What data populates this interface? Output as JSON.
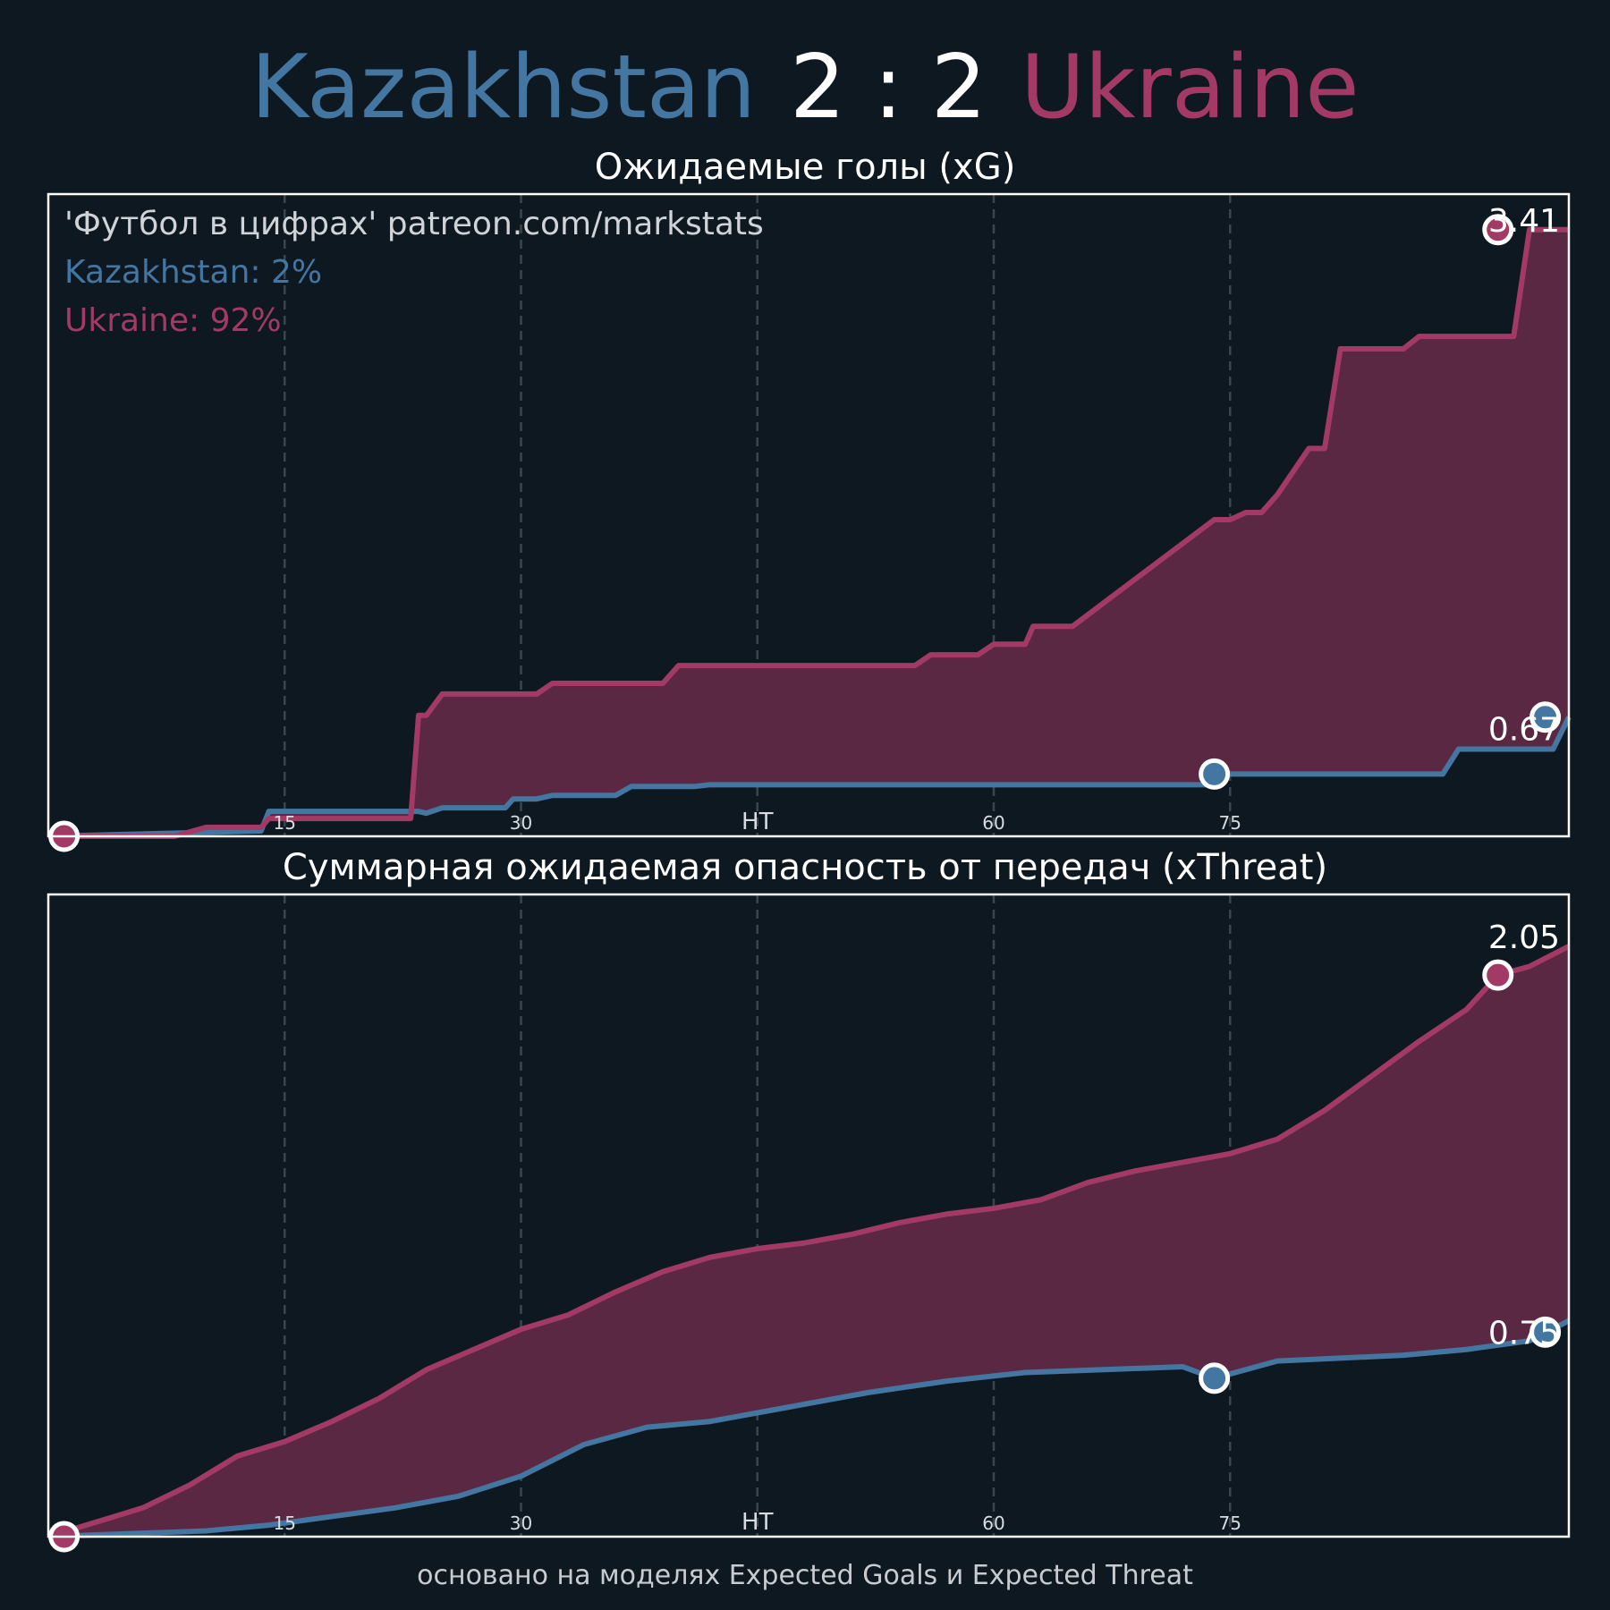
{
  "match": {
    "home_team": "Kazakhstan",
    "away_team": "Ukraine",
    "score": "2 : 2",
    "home_color": "#4476a2",
    "away_color": "#a33a65",
    "fill_color": "#5a2843",
    "background": "#0e1821"
  },
  "source_label": "'Футбол в цифрах' patreon.com/markstats",
  "win_probability": {
    "home_label": "Kazakhstan: 2%",
    "away_label": "Ukraine: 92%"
  },
  "footer": "основано на моделях Expected Goals и Expected Threat",
  "chart_data": [
    {
      "type": "line",
      "title": "Ожидаемые голы (xG)",
      "xlim": [
        0,
        96.5
      ],
      "ylim": [
        0,
        3.61
      ],
      "x_ticks": [
        {
          "value": 15,
          "label": "15"
        },
        {
          "value": 30,
          "label": "30"
        },
        {
          "value": 45,
          "label": "HT"
        },
        {
          "value": 60,
          "label": "60"
        },
        {
          "value": 75,
          "label": "75"
        }
      ],
      "final_labels": {
        "home": "0.67",
        "away": "3.41"
      },
      "goals": [
        {
          "team": "away",
          "minute": 1,
          "value": 0.0
        },
        {
          "team": "home",
          "minute": 74,
          "value": 0.35
        },
        {
          "team": "away",
          "minute": 92,
          "value": 3.41
        },
        {
          "team": "home",
          "minute": 95,
          "value": 0.67
        }
      ],
      "series": [
        {
          "name": "Kazakhstan",
          "team": "home",
          "x": [
            0,
            13.5,
            14,
            23.5,
            24,
            25,
            29,
            29.5,
            31,
            32,
            36,
            37,
            41,
            42,
            47,
            74,
            74.5,
            88.5,
            89.5,
            95.5,
            96.5
          ],
          "y": [
            0,
            0.03,
            0.14,
            0.14,
            0.13,
            0.16,
            0.16,
            0.21,
            0.21,
            0.23,
            0.23,
            0.28,
            0.28,
            0.29,
            0.29,
            0.29,
            0.35,
            0.35,
            0.49,
            0.49,
            0.67
          ]
        },
        {
          "name": "Ukraine",
          "team": "away",
          "x": [
            0,
            8,
            10,
            13.5,
            14,
            23,
            23.5,
            24,
            25,
            26,
            31,
            32,
            39,
            40,
            47,
            55,
            56,
            59,
            60,
            62,
            62.5,
            63,
            64,
            65,
            74,
            75,
            76,
            77,
            78,
            80,
            81,
            82,
            82.5,
            86,
            87,
            93,
            94,
            94.5,
            95.5,
            96.5
          ],
          "y": [
            0,
            0,
            0.05,
            0.05,
            0.1,
            0.1,
            0.68,
            0.68,
            0.8,
            0.8,
            0.8,
            0.86,
            0.86,
            0.96,
            0.96,
            0.96,
            1.02,
            1.02,
            1.08,
            1.08,
            1.18,
            1.18,
            1.18,
            1.18,
            1.78,
            1.78,
            1.82,
            1.82,
            1.92,
            2.18,
            2.18,
            2.74,
            2.74,
            2.74,
            2.81,
            2.81,
            3.41,
            3.41,
            3.41,
            3.41
          ]
        }
      ]
    },
    {
      "type": "line",
      "title": "Суммарная ожидаемая опасность от передач (xThreat)",
      "xlim": [
        0,
        96.5
      ],
      "ylim": [
        0,
        2.23
      ],
      "x_ticks": [
        {
          "value": 15,
          "label": "15"
        },
        {
          "value": 30,
          "label": "30"
        },
        {
          "value": 45,
          "label": "HT"
        },
        {
          "value": 60,
          "label": "60"
        },
        {
          "value": 75,
          "label": "75"
        }
      ],
      "final_labels": {
        "home": "0.75",
        "away": "2.05"
      },
      "goals": [
        {
          "team": "away",
          "minute": 1,
          "value": 0.0
        },
        {
          "team": "home",
          "minute": 74,
          "value": 0.55
        },
        {
          "team": "away",
          "minute": 92,
          "value": 1.95
        },
        {
          "team": "home",
          "minute": 95,
          "value": 0.71
        }
      ],
      "series": [
        {
          "name": "Kazakhstan",
          "team": "home",
          "x": [
            0,
            5,
            10,
            14,
            18,
            22,
            26,
            30,
            34,
            38,
            42,
            47,
            52,
            57,
            62,
            67,
            72,
            74,
            78,
            82,
            86,
            90,
            94,
            96.5
          ],
          "y": [
            0,
            0.01,
            0.02,
            0.04,
            0.07,
            0.1,
            0.14,
            0.21,
            0.32,
            0.38,
            0.4,
            0.45,
            0.5,
            0.54,
            0.57,
            0.58,
            0.59,
            0.55,
            0.61,
            0.62,
            0.63,
            0.65,
            0.68,
            0.75
          ]
        },
        {
          "name": "Ukraine",
          "team": "away",
          "x": [
            0,
            3,
            6,
            9,
            12,
            15,
            18,
            21,
            24,
            27,
            30,
            33,
            36,
            39,
            42,
            45,
            48,
            51,
            54,
            57,
            60,
            63,
            66,
            69,
            72,
            75,
            78,
            81,
            84,
            87,
            90,
            92,
            94,
            96.5
          ],
          "y": [
            0,
            0.05,
            0.1,
            0.18,
            0.28,
            0.33,
            0.4,
            0.48,
            0.58,
            0.65,
            0.72,
            0.77,
            0.85,
            0.92,
            0.97,
            1.0,
            1.02,
            1.05,
            1.09,
            1.12,
            1.14,
            1.17,
            1.23,
            1.27,
            1.3,
            1.33,
            1.38,
            1.48,
            1.6,
            1.72,
            1.83,
            1.95,
            1.98,
            2.05
          ]
        }
      ]
    }
  ]
}
